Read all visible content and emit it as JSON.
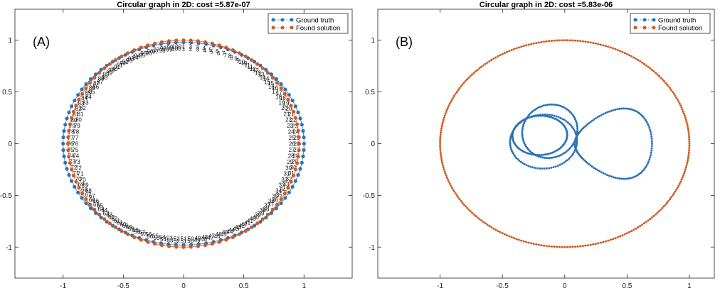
{
  "colors": {
    "ground_truth": "#2b72b6",
    "found_solution": "#d05a22",
    "axes": "#222222",
    "tick_text": "#222222",
    "legend_border": "#222222"
  },
  "chart_data": [
    {
      "type": "scatter",
      "panel_label": "(A)",
      "title": "Circular graph in 2D: cost =5.87e-07",
      "xlabel": "",
      "ylabel": "",
      "xlim": [
        -1.4,
        1.4
      ],
      "ylim": [
        -1.3,
        1.3
      ],
      "xticks": [
        -1,
        -0.5,
        0,
        0.5,
        1
      ],
      "xtick_labels": [
        "-1",
        "-0.5",
        "0",
        "0.5",
        "1"
      ],
      "yticks": [
        -1,
        -0.5,
        0,
        0.5,
        1
      ],
      "ytick_labels": [
        "-1",
        "-0.5",
        "0",
        "0.5",
        "1"
      ],
      "grid": false,
      "legend": {
        "location": "top-right",
        "entries": [
          "Ground truth",
          "Found solution"
        ]
      },
      "series": [
        {
          "name": "Ground truth",
          "shape": "ellipse",
          "center": [
            0,
            0
          ],
          "radius_x": 1.0,
          "radius_y": 0.98,
          "point_count": 100,
          "point_labels": "1-100 (node index, printed beside each point)"
        },
        {
          "name": "Found solution",
          "shape": "ellipse",
          "center": [
            0,
            0
          ],
          "radius_x": 0.96,
          "radius_y": 1.0,
          "point_count": 100,
          "point_labels": "1-100 (node index, printed beside each point)"
        }
      ]
    },
    {
      "type": "scatter",
      "panel_label": "(B)",
      "title": "Circular graph in 2D: cost =5.83e-06",
      "xlabel": "",
      "ylabel": "",
      "xlim": [
        -1.5,
        1.2
      ],
      "ylim": [
        -1.3,
        1.3
      ],
      "xticks": [
        -1,
        -0.5,
        0,
        0.5,
        1
      ],
      "xtick_labels": [
        "-1",
        "-0.5",
        "0",
        "0.5",
        "1"
      ],
      "yticks": [
        -1,
        -0.5,
        0,
        0.5,
        1
      ],
      "ytick_labels": [
        "-1",
        "-0.5",
        "0",
        "0.5",
        "1"
      ],
      "grid": false,
      "legend": {
        "location": "top-right",
        "entries": [
          "Ground truth",
          "Found solution"
        ]
      },
      "series": [
        {
          "name": "Ground truth",
          "shape": "multi-loop curve (three overlapping loops left of x=0.08, one large loop to the right)",
          "x_range": [
            -0.45,
            0.7
          ],
          "y_range": [
            -0.45,
            0.4
          ],
          "point_count": 300
        },
        {
          "name": "Found solution",
          "shape": "ellipse",
          "center": [
            0,
            0
          ],
          "radius_x": 1.0,
          "radius_y": 1.0,
          "point_count": 300
        }
      ]
    }
  ]
}
